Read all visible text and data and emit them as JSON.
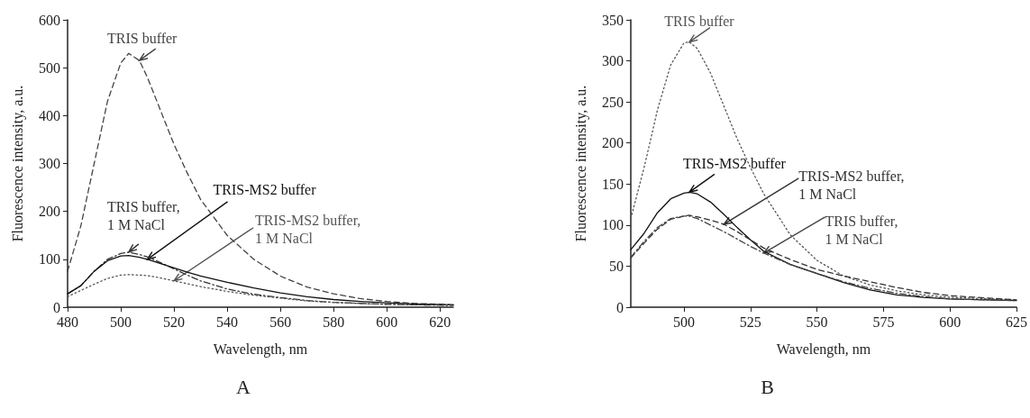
{
  "chart_data": [
    {
      "type": "line",
      "xlabel": "Wavelength, nm",
      "ylabel": "Fluorescence intensity, a.u.",
      "xlim": [
        480,
        625
      ],
      "xticks": [
        480,
        500,
        520,
        540,
        560,
        580,
        600,
        620
      ],
      "ylim": [
        0,
        600
      ],
      "yticks": [
        0,
        100,
        200,
        300,
        400,
        500,
        600
      ],
      "grid": false,
      "legend": false,
      "marker": "none",
      "x": [
        480,
        485,
        490,
        495,
        500,
        503,
        507,
        510,
        515,
        520,
        525,
        530,
        540,
        550,
        560,
        570,
        580,
        590,
        600,
        610,
        625
      ],
      "series": [
        {
          "name": "TRIS buffer",
          "color": "#444444",
          "line_style": "dashed",
          "values": [
            75,
            170,
            300,
            430,
            510,
            530,
            515,
            480,
            410,
            340,
            280,
            225,
            150,
            100,
            65,
            42,
            28,
            18,
            12,
            8,
            5
          ]
        },
        {
          "name": "TRIS buffer,\n1 M NaCl",
          "color": "#333333",
          "line_style": "dashdot",
          "values": [
            28,
            45,
            75,
            100,
            112,
            115,
            110,
            105,
            93,
            80,
            67,
            55,
            38,
            27,
            20,
            14,
            10,
            8,
            6,
            5,
            4
          ]
        },
        {
          "name": "TRIS-MS2 buffer",
          "color": "#111111",
          "line_style": "solid",
          "values": [
            28,
            45,
            75,
            97,
            107,
            108,
            104,
            100,
            91,
            82,
            73,
            65,
            52,
            40,
            30,
            22,
            16,
            12,
            9,
            7,
            5
          ]
        },
        {
          "name": "TRIS-MS2 buffer,\n1 M NaCl",
          "color": "#555555",
          "line_style": "dotted",
          "values": [
            22,
            35,
            48,
            60,
            67,
            68,
            67,
            66,
            61,
            55,
            49,
            43,
            33,
            25,
            19,
            13,
            10,
            8,
            6,
            5,
            4
          ]
        }
      ],
      "annotations": [
        "A"
      ]
    },
    {
      "type": "line",
      "xlabel": "Wavelength, nm",
      "ylabel": "Fluorescence intensity, a.u.",
      "xlim": [
        480,
        625
      ],
      "xticks": [
        500,
        525,
        550,
        575,
        600,
        625
      ],
      "ylim": [
        0,
        350
      ],
      "yticks": [
        0,
        50,
        100,
        150,
        200,
        250,
        300,
        350
      ],
      "grid": false,
      "legend": false,
      "marker": "none",
      "x": [
        480,
        485,
        490,
        495,
        500,
        502,
        505,
        510,
        515,
        520,
        525,
        530,
        540,
        550,
        560,
        570,
        580,
        590,
        600,
        625
      ],
      "series": [
        {
          "name": "TRIS buffer",
          "color": "#555555",
          "line_style": "dotted",
          "values": [
            108,
            170,
            240,
            295,
            322,
            323,
            315,
            285,
            245,
            205,
            170,
            138,
            88,
            57,
            38,
            27,
            20,
            15,
            12,
            9
          ]
        },
        {
          "name": "TRIS-MS2 buffer",
          "color": "#111111",
          "line_style": "solid",
          "values": [
            70,
            90,
            115,
            132,
            139,
            140,
            138,
            128,
            113,
            97,
            82,
            68,
            52,
            41,
            30,
            21,
            15,
            12,
            10,
            8
          ]
        },
        {
          "name": "TRIS-MS2 buffer,\n1 M NaCl",
          "color": "#333333",
          "line_style": "dashed",
          "values": [
            60,
            78,
            95,
            107,
            111,
            112,
            110,
            106,
            101,
            92,
            82,
            72,
            58,
            46,
            38,
            31,
            24,
            18,
            14,
            9
          ]
        },
        {
          "name": "TRIS buffer,\n1 M NaCl",
          "color": "#444444",
          "line_style": "dashdot",
          "values": [
            61,
            80,
            97,
            108,
            111,
            111,
            108,
            100,
            92,
            83,
            74,
            66,
            52,
            41,
            31,
            23,
            17,
            13,
            10,
            8
          ]
        }
      ],
      "annotations": [
        "B"
      ]
    }
  ]
}
